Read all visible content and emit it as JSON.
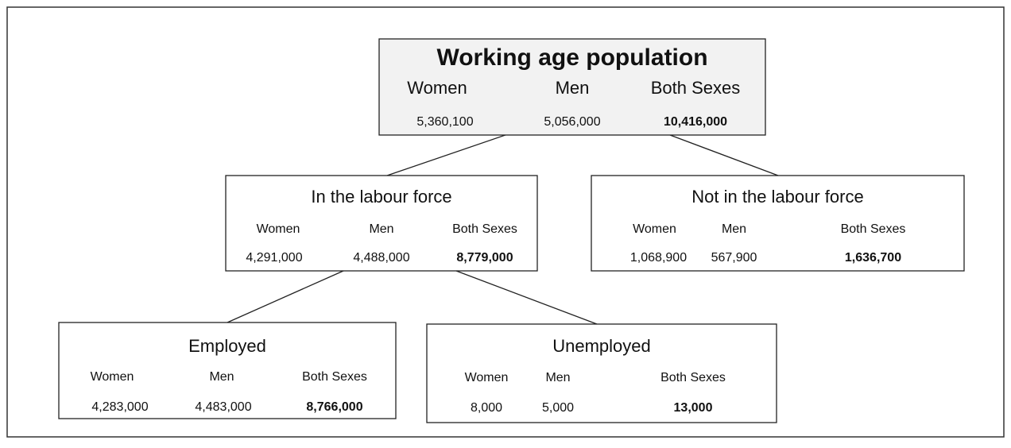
{
  "nodes": [
    {
      "label": "Working age population",
      "headers": [
        "Women",
        "Men",
        "Both Sexes"
      ],
      "values": [
        "5,360,100",
        "5,056,000",
        "10,416,000"
      ]
    },
    {
      "label": "In the labour force",
      "headers": [
        "Women",
        "Men",
        "Both Sexes"
      ],
      "values": [
        "4,291,000",
        "4,488,000",
        "8,779,000"
      ]
    },
    {
      "label": "Not in the labour force",
      "headers": [
        "Women",
        "Men",
        "Both Sexes"
      ],
      "values": [
        "1,068,900",
        "567,900",
        "1,636,700"
      ]
    },
    {
      "label": "Employed",
      "headers": [
        "Women",
        "Men",
        "Both Sexes"
      ],
      "values": [
        "4,283,000",
        "4,483,000",
        "8,766,000"
      ]
    },
    {
      "label": "Unemployed",
      "headers": [
        "Women",
        "Men",
        "Both Sexes"
      ],
      "values": [
        "8,000",
        "5,000",
        "13,000"
      ]
    }
  ]
}
